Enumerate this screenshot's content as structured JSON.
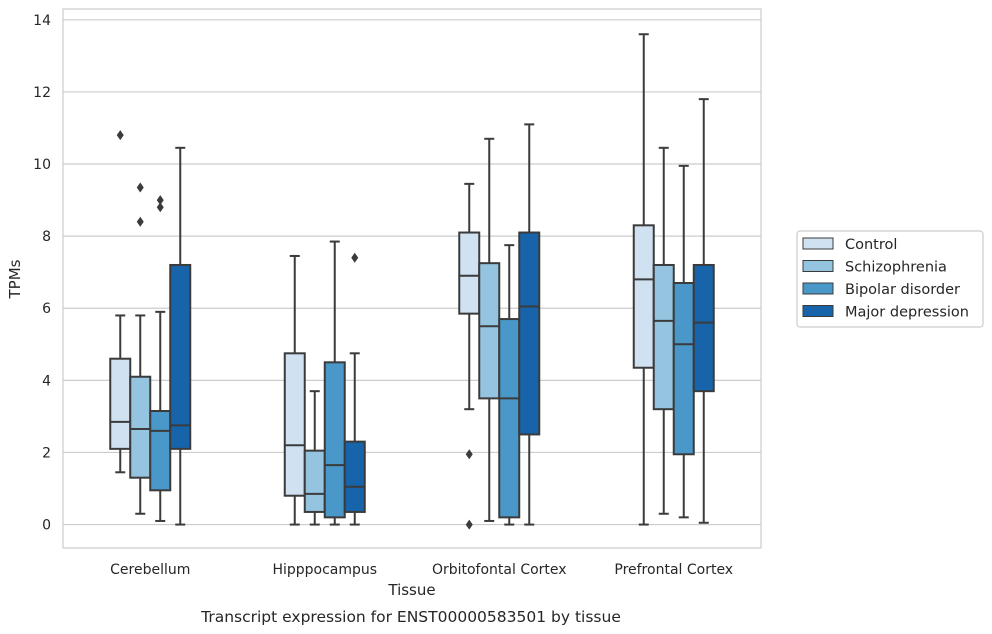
{
  "chart_data": {
    "type": "box",
    "xlabel": "Tissue",
    "ylabel": "TPMs",
    "caption": "Transcript expression for ENST00000583501 by tissue",
    "ylim": [
      -0.65,
      14.3
    ],
    "yticks": [
      0,
      2,
      4,
      6,
      8,
      10,
      12,
      14
    ],
    "categories": [
      "Cerebellum",
      "Hipppocampus",
      "Orbitofontal Cortex",
      "Prefrontal Cortex"
    ],
    "legend_position": "right",
    "grid": true,
    "series": [
      {
        "name": "Control",
        "color": "#d0e1f2",
        "boxes": [
          {
            "whisker_low": 1.45,
            "q1": 2.1,
            "median": 2.85,
            "q3": 4.6,
            "whisker_high": 5.8,
            "outliers": [
              10.8
            ]
          },
          {
            "whisker_low": 0.0,
            "q1": 0.8,
            "median": 2.2,
            "q3": 4.75,
            "whisker_high": 7.45,
            "outliers": []
          },
          {
            "whisker_low": 3.2,
            "q1": 5.85,
            "median": 6.9,
            "q3": 8.1,
            "whisker_high": 9.45,
            "outliers": [
              1.95,
              0.0
            ]
          },
          {
            "whisker_low": 0.0,
            "q1": 4.35,
            "median": 6.8,
            "q3": 8.3,
            "whisker_high": 13.6,
            "outliers": []
          }
        ]
      },
      {
        "name": "Schizophrenia",
        "color": "#94c4df",
        "boxes": [
          {
            "whisker_low": 0.3,
            "q1": 1.3,
            "median": 2.65,
            "q3": 4.1,
            "whisker_high": 5.8,
            "outliers": [
              9.35,
              8.4
            ]
          },
          {
            "whisker_low": 0.0,
            "q1": 0.35,
            "median": 0.85,
            "q3": 2.05,
            "whisker_high": 3.7,
            "outliers": []
          },
          {
            "whisker_low": 0.1,
            "q1": 3.5,
            "median": 5.5,
            "q3": 7.25,
            "whisker_high": 10.7,
            "outliers": []
          },
          {
            "whisker_low": 0.3,
            "q1": 3.2,
            "median": 5.65,
            "q3": 7.2,
            "whisker_high": 10.45,
            "outliers": []
          }
        ]
      },
      {
        "name": "Bipolar disorder",
        "color": "#4a98c9",
        "boxes": [
          {
            "whisker_low": 0.1,
            "q1": 0.95,
            "median": 2.6,
            "q3": 3.15,
            "whisker_high": 5.9,
            "outliers": [
              9.0,
              8.8
            ]
          },
          {
            "whisker_low": 0.0,
            "q1": 0.2,
            "median": 1.65,
            "q3": 4.5,
            "whisker_high": 7.85,
            "outliers": []
          },
          {
            "whisker_low": 0.0,
            "q1": 0.2,
            "median": 3.5,
            "q3": 5.7,
            "whisker_high": 7.75,
            "outliers": []
          },
          {
            "whisker_low": 0.2,
            "q1": 1.95,
            "median": 5.0,
            "q3": 6.7,
            "whisker_high": 9.95,
            "outliers": []
          }
        ]
      },
      {
        "name": "Major depression",
        "color": "#1764ab",
        "boxes": [
          {
            "whisker_low": 0.0,
            "q1": 2.1,
            "median": 2.75,
            "q3": 7.2,
            "whisker_high": 10.45,
            "outliers": []
          },
          {
            "whisker_low": 0.0,
            "q1": 0.35,
            "median": 1.05,
            "q3": 2.3,
            "whisker_high": 4.75,
            "outliers": [
              7.4
            ]
          },
          {
            "whisker_low": 0.0,
            "q1": 2.5,
            "median": 6.05,
            "q3": 8.1,
            "whisker_high": 11.1,
            "outliers": []
          },
          {
            "whisker_low": 0.05,
            "q1": 3.7,
            "median": 5.6,
            "q3": 7.2,
            "whisker_high": 11.8,
            "outliers": []
          }
        ]
      }
    ]
  }
}
